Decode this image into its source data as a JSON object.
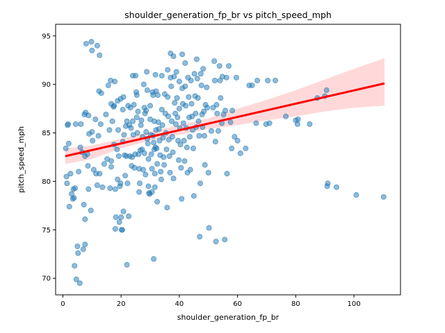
{
  "chart_data": {
    "type": "scatter",
    "title": "shoulder_generation_fp_br vs pitch_speed_mph",
    "xlabel": "shoulder_generation_fp_br",
    "ylabel": "pitch_speed_mph",
    "xlim": [
      -2.5,
      116
    ],
    "ylim": [
      68.3,
      96.2
    ],
    "x_ticks": [
      0,
      20,
      40,
      60,
      80,
      100
    ],
    "y_ticks": [
      70,
      75,
      80,
      85,
      90,
      95
    ],
    "grid": false,
    "legend": "none",
    "colors": {
      "points": "#1f77b4",
      "regression_line": "#ff0000",
      "confidence_band": "#ff0000"
    },
    "regression": {
      "x": [
        0.8,
        110.5
      ],
      "y": [
        82.6,
        90.1
      ]
    },
    "confidence_band": {
      "x": [
        0.8,
        10,
        20,
        30,
        40,
        50,
        60,
        70,
        80,
        90,
        100,
        110.5
      ],
      "upper": [
        83.4,
        83.7,
        84.4,
        85.1,
        85.8,
        86.5,
        87.5,
        88.4,
        89.4,
        90.5,
        91.6,
        92.7
      ],
      "lower": [
        81.8,
        82.3,
        83.4,
        84.2,
        84.8,
        85.4,
        85.8,
        86.3,
        86.7,
        87.2,
        87.6,
        87.8
      ]
    },
    "points": [
      [
        1.0,
        83.4
      ],
      [
        1.2,
        80.5
      ],
      [
        1.4,
        79.8
      ],
      [
        1.6,
        85.8
      ],
      [
        1.8,
        85.9
      ],
      [
        2.0,
        83.9
      ],
      [
        2.2,
        77.4
      ],
      [
        2.6,
        80.8
      ],
      [
        3.0,
        78.7
      ],
      [
        3.4,
        78.2
      ],
      [
        3.6,
        79.2
      ],
      [
        3.8,
        78.3
      ],
      [
        4.0,
        71.3
      ],
      [
        4.2,
        79.3
      ],
      [
        4.4,
        85.9
      ],
      [
        4.6,
        69.9
      ],
      [
        5.0,
        73.3
      ],
      [
        5.2,
        72.6
      ],
      [
        5.4,
        81.0
      ],
      [
        5.8,
        69.5
      ],
      [
        6.0,
        83.5
      ],
      [
        6.2,
        85.9
      ],
      [
        6.6,
        83.0
      ],
      [
        7.0,
        73.0
      ],
      [
        7.2,
        77.6
      ],
      [
        7.4,
        86.9
      ],
      [
        7.6,
        76.1
      ],
      [
        7.6,
        73.5
      ],
      [
        7.6,
        82.6
      ],
      [
        7.8,
        87.1
      ],
      [
        8.0,
        94.2
      ],
      [
        8.4,
        82.8
      ],
      [
        8.6,
        81.6
      ],
      [
        8.8,
        79.2
      ],
      [
        8.8,
        86.8
      ],
      [
        9.0,
        84.9
      ],
      [
        9.6,
        77.0
      ],
      [
        9.8,
        94.4
      ],
      [
        10.0,
        93.5
      ],
      [
        10.0,
        85.1
      ],
      [
        10.2,
        84.2
      ],
      [
        10.6,
        81.2
      ],
      [
        11.2,
        86.4
      ],
      [
        11.4,
        80.8
      ],
      [
        11.8,
        94.0
      ],
      [
        11.8,
        79.6
      ],
      [
        12.2,
        84.7
      ],
      [
        12.4,
        89.3
      ],
      [
        12.6,
        93.0
      ],
      [
        12.6,
        80.8
      ],
      [
        13.0,
        85.9
      ],
      [
        13.2,
        89.1
      ],
      [
        13.6,
        79.4
      ],
      [
        14.2,
        81.8
      ],
      [
        14.8,
        86.9
      ],
      [
        15.2,
        82.3
      ],
      [
        15.6,
        89.9
      ],
      [
        16.0,
        85.3
      ],
      [
        16.2,
        79.3
      ],
      [
        16.4,
        90.4
      ],
      [
        16.6,
        81.5
      ],
      [
        16.6,
        82.1
      ],
      [
        16.6,
        88.0
      ],
      [
        17.0,
        86.2
      ],
      [
        17.4,
        87.7
      ],
      [
        17.6,
        87.8
      ],
      [
        17.6,
        83.8
      ],
      [
        17.8,
        90.3
      ],
      [
        18.0,
        79.2
      ],
      [
        18.0,
        75.1
      ],
      [
        18.2,
        76.3
      ],
      [
        18.6,
        83.3
      ],
      [
        18.8,
        88.3
      ],
      [
        18.8,
        80.2
      ],
      [
        19.0,
        85.3
      ],
      [
        19.2,
        82.6
      ],
      [
        19.4,
        75.8
      ],
      [
        19.6,
        79.5
      ],
      [
        19.8,
        88.5
      ],
      [
        19.8,
        79.8
      ],
      [
        20.0,
        76.3
      ],
      [
        20.2,
        75.0
      ],
      [
        20.4,
        75.0
      ],
      [
        20.6,
        87.4
      ],
      [
        20.6,
        84.1
      ],
      [
        20.8,
        88.7
      ],
      [
        20.8,
        76.9
      ],
      [
        21.0,
        84.8
      ],
      [
        21.2,
        82.7
      ],
      [
        21.4,
        80.6
      ],
      [
        21.6,
        85.7
      ],
      [
        21.8,
        82.6
      ],
      [
        22.0,
        71.4
      ],
      [
        22.0,
        86.2
      ],
      [
        22.2,
        79.8
      ],
      [
        22.4,
        87.8
      ],
      [
        22.6,
        76.4
      ],
      [
        22.8,
        85.8
      ],
      [
        23.0,
        82.6
      ],
      [
        23.2,
        87.6
      ],
      [
        23.4,
        85.5
      ],
      [
        23.6,
        81.6
      ],
      [
        23.8,
        82.5
      ],
      [
        24.0,
        90.9
      ],
      [
        24.0,
        86.2
      ],
      [
        24.2,
        84.8
      ],
      [
        24.4,
        87.9
      ],
      [
        24.6,
        81.4
      ],
      [
        24.8,
        82.8
      ],
      [
        25.0,
        90.9
      ],
      [
        25.2,
        89.2
      ],
      [
        25.4,
        88.9
      ],
      [
        25.4,
        86.6
      ],
      [
        25.6,
        85.0
      ],
      [
        25.8,
        87.2
      ],
      [
        26.0,
        82.8
      ],
      [
        26.2,
        81.3
      ],
      [
        26.2,
        78.9
      ],
      [
        26.4,
        79.8
      ],
      [
        26.6,
        83.2
      ],
      [
        26.8,
        85.8
      ],
      [
        27.0,
        86.3
      ],
      [
        27.2,
        83.3
      ],
      [
        27.4,
        84.6
      ],
      [
        27.6,
        81.2
      ],
      [
        27.8,
        90.0
      ],
      [
        28.0,
        87.6
      ],
      [
        28.0,
        82.9
      ],
      [
        28.2,
        87.0
      ],
      [
        28.4,
        80.7
      ],
      [
        28.6,
        87.3
      ],
      [
        28.6,
        85.1
      ],
      [
        28.8,
        91.3
      ],
      [
        29.0,
        89.4
      ],
      [
        29.0,
        84.4
      ],
      [
        29.2,
        83.9
      ],
      [
        29.4,
        82.3
      ],
      [
        29.4,
        79.5
      ],
      [
        29.6,
        78.8
      ],
      [
        29.8,
        78.7
      ],
      [
        30.0,
        87.8
      ],
      [
        30.0,
        86.4
      ],
      [
        30.2,
        84.8
      ],
      [
        30.4,
        82.8
      ],
      [
        30.6,
        81.3
      ],
      [
        30.6,
        78.9
      ],
      [
        30.8,
        89.2
      ],
      [
        31.0,
        88.9
      ],
      [
        31.0,
        84.7
      ],
      [
        31.2,
        84.0
      ],
      [
        31.2,
        72.0
      ],
      [
        31.4,
        86.2
      ],
      [
        31.4,
        83.3
      ],
      [
        31.6,
        80.8
      ],
      [
        31.6,
        79.4
      ],
      [
        31.8,
        91.0
      ],
      [
        31.8,
        83.5
      ],
      [
        32.0,
        89.3
      ],
      [
        32.0,
        85.3
      ],
      [
        32.2,
        83.4
      ],
      [
        32.4,
        81.8
      ],
      [
        32.4,
        77.9
      ],
      [
        32.6,
        88.9
      ],
      [
        32.8,
        86.1
      ],
      [
        33.0,
        85.4
      ],
      [
        33.2,
        84.2
      ],
      [
        33.4,
        82.7
      ],
      [
        33.6,
        81.0
      ],
      [
        33.8,
        80.2
      ],
      [
        34.0,
        90.9
      ],
      [
        34.0,
        87.4
      ],
      [
        34.2,
        85.8
      ],
      [
        34.4,
        84.5
      ],
      [
        34.6,
        82.5
      ],
      [
        34.8,
        81.7
      ],
      [
        35.0,
        89.0
      ],
      [
        35.2,
        87.0
      ],
      [
        35.4,
        85.0
      ],
      [
        35.6,
        83.3
      ],
      [
        35.8,
        77.3
      ],
      [
        36.0,
        91.5
      ],
      [
        36.0,
        88.7
      ],
      [
        36.2,
        86.7
      ],
      [
        36.4,
        84.3
      ],
      [
        36.6,
        82.6
      ],
      [
        36.8,
        80.9
      ],
      [
        37.0,
        93.2
      ],
      [
        37.0,
        90.7
      ],
      [
        37.2,
        89.8
      ],
      [
        37.4,
        86.2
      ],
      [
        37.6,
        84.6
      ],
      [
        37.8,
        83.0
      ],
      [
        38.0,
        80.3
      ],
      [
        38.0,
        92.9
      ],
      [
        38.2,
        90.8
      ],
      [
        38.4,
        88.1
      ],
      [
        38.6,
        87.0
      ],
      [
        38.8,
        85.9
      ],
      [
        39.0,
        91.3
      ],
      [
        39.2,
        88.6
      ],
      [
        39.4,
        86.6
      ],
      [
        39.6,
        84.2
      ],
      [
        39.8,
        82.2
      ],
      [
        40.0,
        90.3
      ],
      [
        40.0,
        87.5
      ],
      [
        40.2,
        85.5
      ],
      [
        40.4,
        83.8
      ],
      [
        40.6,
        81.4
      ],
      [
        40.8,
        78.2
      ],
      [
        41.0,
        93.1
      ],
      [
        41.0,
        89.6
      ],
      [
        41.2,
        88.0
      ],
      [
        41.4,
        86.0
      ],
      [
        41.6,
        84.2
      ],
      [
        41.8,
        82.1
      ],
      [
        42.0,
        92.2
      ],
      [
        42.0,
        89.8
      ],
      [
        42.2,
        87.8
      ],
      [
        42.4,
        85.5
      ],
      [
        42.6,
        83.5
      ],
      [
        42.8,
        80.9
      ],
      [
        43.0,
        90.7
      ],
      [
        43.2,
        88.7
      ],
      [
        43.4,
        86.6
      ],
      [
        43.6,
        84.6
      ],
      [
        43.8,
        81.2
      ],
      [
        44.0,
        90.4
      ],
      [
        44.2,
        88.0
      ],
      [
        44.4,
        86.7
      ],
      [
        44.6,
        85.3
      ],
      [
        44.8,
        83.4
      ],
      [
        45.0,
        78.5
      ],
      [
        45.2,
        91.1
      ],
      [
        45.4,
        88.8
      ],
      [
        45.6,
        87.0
      ],
      [
        45.8,
        85.6
      ],
      [
        46.0,
        92.6
      ],
      [
        46.2,
        90.6
      ],
      [
        46.4,
        88.6
      ],
      [
        46.6,
        86.2
      ],
      [
        46.8,
        84.7
      ],
      [
        47.0,
        74.3
      ],
      [
        47.2,
        79.8
      ],
      [
        47.4,
        91.1
      ],
      [
        47.6,
        89.9
      ],
      [
        47.8,
        86.9
      ],
      [
        48.0,
        85.6
      ],
      [
        48.2,
        91.6
      ],
      [
        48.4,
        87.2
      ],
      [
        48.6,
        84.7
      ],
      [
        48.8,
        81.7
      ],
      [
        49.0,
        87.9
      ],
      [
        49.4,
        89.7
      ],
      [
        49.6,
        87.6
      ],
      [
        50.0,
        80.9
      ],
      [
        50.2,
        75.2
      ],
      [
        51.0,
        85.2
      ],
      [
        51.6,
        87.6
      ],
      [
        52.0,
        92.4
      ],
      [
        52.2,
        90.4
      ],
      [
        52.4,
        84.1
      ],
      [
        52.6,
        73.8
      ],
      [
        52.8,
        87.9
      ],
      [
        53.0,
        87.0
      ],
      [
        53.4,
        85.2
      ],
      [
        53.8,
        91.9
      ],
      [
        54.0,
        90.4
      ],
      [
        54.2,
        88.6
      ],
      [
        54.6,
        86.0
      ],
      [
        54.8,
        90.8
      ],
      [
        55.2,
        86.9
      ],
      [
        55.6,
        74.0
      ],
      [
        55.8,
        87.3
      ],
      [
        56.2,
        90.7
      ],
      [
        56.4,
        80.8
      ],
      [
        57.0,
        91.9
      ],
      [
        57.6,
        86.1
      ],
      [
        58.0,
        83.4
      ],
      [
        58.2,
        87.3
      ],
      [
        59.0,
        84.6
      ],
      [
        59.6,
        90.7
      ],
      [
        60.0,
        84.2
      ],
      [
        61.0,
        82.9
      ],
      [
        62.8,
        83.4
      ],
      [
        64.0,
        89.9
      ],
      [
        65.0,
        89.9
      ],
      [
        66.4,
        86.0
      ],
      [
        66.8,
        90.4
      ],
      [
        69.8,
        85.9
      ],
      [
        70.4,
        90.4
      ],
      [
        71.0,
        86.0
      ],
      [
        73.0,
        90.4
      ],
      [
        76.6,
        86.7
      ],
      [
        80.0,
        86.3
      ],
      [
        80.6,
        85.9
      ],
      [
        80.8,
        86.4
      ],
      [
        84.8,
        85.9
      ],
      [
        87.4,
        88.6
      ],
      [
        90.0,
        88.8
      ],
      [
        90.6,
        89.4
      ],
      [
        90.8,
        79.5
      ],
      [
        91.0,
        79.8
      ],
      [
        94.0,
        79.4
      ],
      [
        100.8,
        78.6
      ],
      [
        110.2,
        78.4
      ]
    ]
  }
}
